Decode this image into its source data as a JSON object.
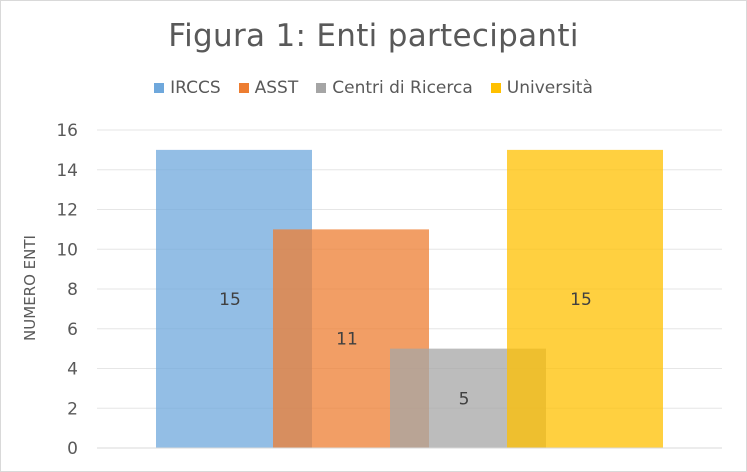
{
  "chart_data": {
    "type": "bar",
    "title": "Figura 1: Enti partecipanti",
    "ylabel": "NUMERO ENTI",
    "xlabel": "",
    "ylim": [
      0,
      16
    ],
    "yticks": [
      0,
      2,
      4,
      6,
      8,
      10,
      12,
      14,
      16
    ],
    "grid": true,
    "legend_position": "top",
    "series": [
      {
        "name": "IRCCS",
        "value": 15,
        "color": "#6fa8dc"
      },
      {
        "name": "ASST",
        "value": 11,
        "color": "#ed7d31"
      },
      {
        "name": "Centri di Ricerca",
        "value": 5,
        "color": "#a5a5a5"
      },
      {
        "name": "Università",
        "value": 15,
        "color": "#ffc000"
      }
    ]
  }
}
